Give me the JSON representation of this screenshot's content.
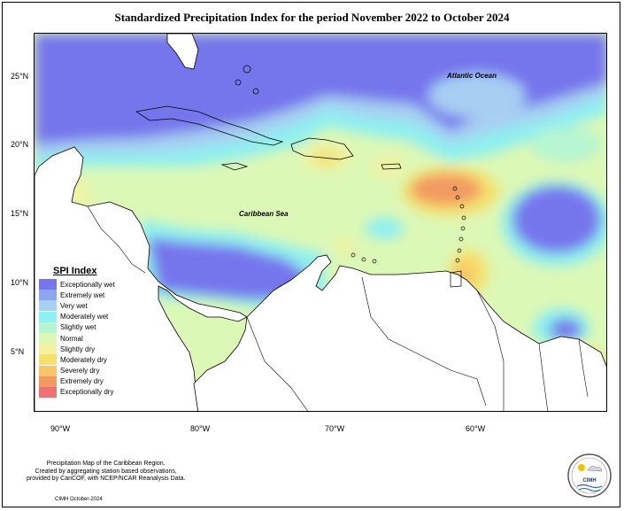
{
  "title": "Standardized Precipitation Index for the period November 2022 to October 2024",
  "labels": {
    "atlantic": "Atlantic Ocean",
    "caribbean": "Caribbean Sea"
  },
  "axes": {
    "lat_ticks": [
      "25°N",
      "20°N",
      "15°N",
      "10°N",
      "5°N"
    ],
    "lon_ticks": [
      "90°W",
      "80°W",
      "70°W",
      "60°W"
    ]
  },
  "legend": {
    "title": "SPI Index",
    "items": [
      {
        "label": "Exceptionally wet",
        "color": "#7676ec"
      },
      {
        "label": "Extremely wet",
        "color": "#8ea6f0"
      },
      {
        "label": "Very wet",
        "color": "#a7cff2"
      },
      {
        "label": "Moderately wet",
        "color": "#8ff0f0"
      },
      {
        "label": "Slightly wet",
        "color": "#b6f5d2"
      },
      {
        "label": "Normal",
        "color": "#dcf8b6"
      },
      {
        "label": "Slightly dry",
        "color": "#f1f3a2"
      },
      {
        "label": "Moderately dry",
        "color": "#f6e06c"
      },
      {
        "label": "Severely dry",
        "color": "#f6c56a"
      },
      {
        "label": "Extremely dry",
        "color": "#f29a62"
      },
      {
        "label": "Exceptionally dry",
        "color": "#ef7272"
      }
    ]
  },
  "credit": {
    "line1": "Precipitation Map of the Caribbean Region.",
    "line2": "Created by aggregating station based observations,",
    "line3": "provided by CariCOF, with NCEP/NCAR Reanalysis Data.",
    "footer": "CIMH October-2024"
  },
  "logo": {
    "text": "CIMH"
  }
}
